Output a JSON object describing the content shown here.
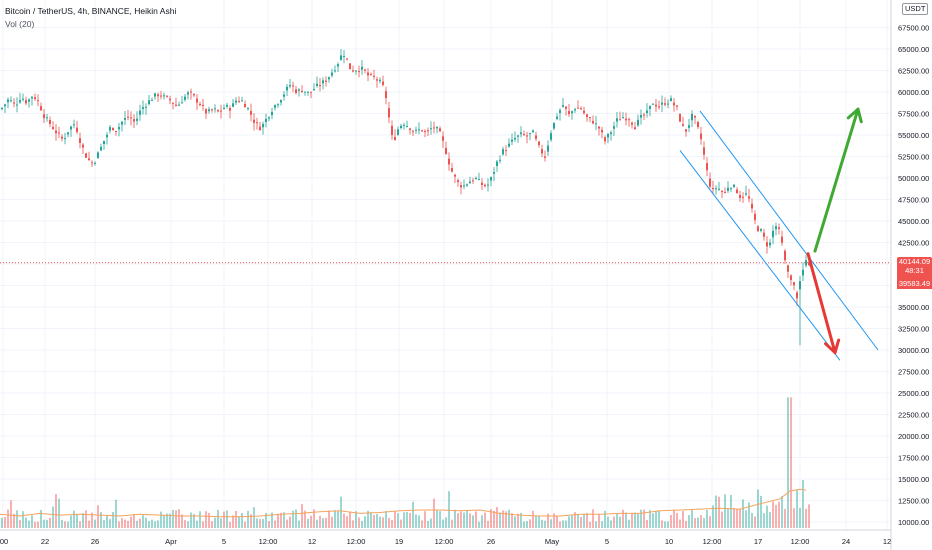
{
  "header": {
    "title": "Bitcoin / TetherUS, 4h, BINANCE, Heikin Ashi",
    "volume_label": "Vol (20)",
    "currency": "USDT"
  },
  "price_tags": {
    "last_price": "40144.09",
    "countdown": "48:31",
    "low_price": "39583.49"
  },
  "colors": {
    "up": "#26a69a",
    "down": "#ef5350",
    "channel": "#2196f3",
    "arrow_up": "#3fa933",
    "arrow_down": "#e53935",
    "volume_ma": "#f7a35c"
  },
  "chart_data": {
    "type": "candlestick",
    "y_axis_ticks": [
      "67500.00",
      "65000.00",
      "62500.00",
      "60000.00",
      "57500.00",
      "55000.00",
      "52500.00",
      "50000.00",
      "47500.00",
      "45000.00",
      "42500.00",
      "40000.00",
      "37500.00",
      "35000.00",
      "32500.00",
      "30000.00",
      "27500.00",
      "25000.00",
      "22500.00",
      "20000.00",
      "17500.00",
      "15000.00",
      "12500.00",
      "10000.00"
    ],
    "x_axis_ticks": [
      ":00",
      "22",
      "26",
      "Apr",
      "5",
      "12:00",
      "12",
      "12:00",
      "19",
      "12:00",
      "26",
      "May",
      "5",
      "10",
      "12:00",
      "17",
      "12:00",
      "24",
      "12"
    ],
    "price_path": [
      [
        0,
        58000
      ],
      [
        8,
        59200
      ],
      [
        14,
        58400
      ],
      [
        20,
        59500
      ],
      [
        26,
        58800
      ],
      [
        32,
        59700
      ],
      [
        38,
        58700
      ],
      [
        44,
        57000
      ],
      [
        50,
        56200
      ],
      [
        56,
        55200
      ],
      [
        62,
        54400
      ],
      [
        68,
        55700
      ],
      [
        74,
        56400
      ],
      [
        80,
        54000
      ],
      [
        86,
        52300
      ],
      [
        92,
        51600
      ],
      [
        98,
        53000
      ],
      [
        104,
        54600
      ],
      [
        110,
        56000
      ],
      [
        116,
        55600
      ],
      [
        122,
        56700
      ],
      [
        128,
        57200
      ],
      [
        134,
        56400
      ],
      [
        140,
        58000
      ],
      [
        146,
        58700
      ],
      [
        152,
        59400
      ],
      [
        158,
        59800
      ],
      [
        164,
        59300
      ],
      [
        170,
        59000
      ],
      [
        176,
        58300
      ],
      [
        182,
        59200
      ],
      [
        188,
        59900
      ],
      [
        194,
        59300
      ],
      [
        200,
        58500
      ],
      [
        206,
        57500
      ],
      [
        212,
        58000
      ],
      [
        218,
        57600
      ],
      [
        224,
        58300
      ],
      [
        230,
        58100
      ],
      [
        236,
        59200
      ],
      [
        242,
        58900
      ],
      [
        248,
        57900
      ],
      [
        254,
        56400
      ],
      [
        260,
        55800
      ],
      [
        266,
        57000
      ],
      [
        272,
        58200
      ],
      [
        278,
        59000
      ],
      [
        284,
        60000
      ],
      [
        290,
        61000
      ],
      [
        296,
        60000
      ],
      [
        302,
        60300
      ],
      [
        308,
        59800
      ],
      [
        314,
        60500
      ],
      [
        320,
        60900
      ],
      [
        326,
        61500
      ],
      [
        332,
        62500
      ],
      [
        338,
        63600
      ],
      [
        342,
        64700
      ],
      [
        346,
        63700
      ],
      [
        350,
        62500
      ],
      [
        356,
        62700
      ],
      [
        362,
        62600
      ],
      [
        368,
        61800
      ],
      [
        374,
        61600
      ],
      [
        380,
        61000
      ],
      [
        384,
        60200
      ],
      [
        388,
        57000
      ],
      [
        392,
        54000
      ],
      [
        396,
        55500
      ],
      [
        402,
        56500
      ],
      [
        408,
        56000
      ],
      [
        414,
        55300
      ],
      [
        420,
        55700
      ],
      [
        426,
        55200
      ],
      [
        432,
        56000
      ],
      [
        438,
        55400
      ],
      [
        444,
        53500
      ],
      [
        450,
        51000
      ],
      [
        456,
        49500
      ],
      [
        462,
        49000
      ],
      [
        468,
        49600
      ],
      [
        474,
        50000
      ],
      [
        480,
        49300
      ],
      [
        486,
        49000
      ],
      [
        490,
        49900
      ],
      [
        496,
        51800
      ],
      [
        502,
        53100
      ],
      [
        508,
        53800
      ],
      [
        514,
        54600
      ],
      [
        520,
        55000
      ],
      [
        526,
        54900
      ],
      [
        532,
        55200
      ],
      [
        538,
        53500
      ],
      [
        544,
        52500
      ],
      [
        550,
        55400
      ],
      [
        556,
        57300
      ],
      [
        562,
        58500
      ],
      [
        568,
        57300
      ],
      [
        574,
        58200
      ],
      [
        580,
        58100
      ],
      [
        586,
        57000
      ],
      [
        592,
        56600
      ],
      [
        598,
        55800
      ],
      [
        604,
        54300
      ],
      [
        610,
        55400
      ],
      [
        616,
        56700
      ],
      [
        622,
        57100
      ],
      [
        628,
        57000
      ],
      [
        634,
        56000
      ],
      [
        640,
        57000
      ],
      [
        646,
        57500
      ],
      [
        652,
        58800
      ],
      [
        658,
        58300
      ],
      [
        664,
        58800
      ],
      [
        670,
        59000
      ],
      [
        676,
        58000
      ],
      [
        680,
        56400
      ],
      [
        684,
        55300
      ],
      [
        688,
        56300
      ],
      [
        692,
        57400
      ],
      [
        696,
        56000
      ],
      [
        700,
        54500
      ],
      [
        704,
        52000
      ],
      [
        708,
        49500
      ],
      [
        712,
        48500
      ],
      [
        716,
        49000
      ],
      [
        720,
        48500
      ],
      [
        724,
        48200
      ],
      [
        728,
        49300
      ],
      [
        732,
        49000
      ],
      [
        736,
        48500
      ],
      [
        740,
        47700
      ],
      [
        744,
        48300
      ],
      [
        748,
        47500
      ],
      [
        752,
        45700
      ],
      [
        756,
        44200
      ],
      [
        760,
        43800
      ],
      [
        764,
        42700
      ],
      [
        768,
        41900
      ],
      [
        772,
        43800
      ],
      [
        776,
        44600
      ],
      [
        780,
        42900
      ],
      [
        784,
        40400
      ],
      [
        788,
        38400
      ],
      [
        792,
        37700
      ],
      [
        796,
        36200
      ],
      [
        800,
        38500
      ],
      [
        804,
        40100
      ],
      [
        808,
        40144
      ]
    ],
    "volume_path": [
      [
        0,
        10900
      ],
      [
        20,
        10700
      ],
      [
        40,
        11000
      ],
      [
        60,
        10800
      ],
      [
        80,
        10900
      ],
      [
        100,
        10800
      ],
      [
        120,
        10700
      ],
      [
        140,
        10900
      ],
      [
        160,
        10800
      ],
      [
        180,
        10700
      ],
      [
        200,
        10700
      ],
      [
        220,
        10600
      ],
      [
        240,
        10600
      ],
      [
        260,
        10700
      ],
      [
        280,
        10900
      ],
      [
        300,
        11000
      ],
      [
        320,
        11200
      ],
      [
        340,
        11300
      ],
      [
        360,
        11000
      ],
      [
        380,
        11100
      ],
      [
        400,
        11300
      ],
      [
        420,
        11400
      ],
      [
        440,
        11400
      ],
      [
        460,
        11300
      ],
      [
        480,
        11400
      ],
      [
        500,
        11000
      ],
      [
        520,
        10800
      ],
      [
        540,
        10700
      ],
      [
        560,
        10700
      ],
      [
        580,
        10900
      ],
      [
        600,
        10900
      ],
      [
        620,
        11000
      ],
      [
        640,
        11000
      ],
      [
        660,
        11300
      ],
      [
        680,
        11400
      ],
      [
        700,
        11500
      ],
      [
        720,
        11600
      ],
      [
        740,
        11500
      ],
      [
        760,
        12100
      ],
      [
        780,
        12700
      ],
      [
        790,
        13600
      ],
      [
        800,
        13800
      ],
      [
        806,
        13700
      ]
    ],
    "channel": {
      "upper": [
        [
          700,
          57800
        ],
        [
          878,
          30000
        ]
      ],
      "lower": [
        [
          680,
          53200
        ],
        [
          840,
          28800
        ]
      ]
    },
    "projections": {
      "bullish_arrow": [
        [
          815,
          41500
        ],
        [
          858,
          58000
        ]
      ],
      "bearish_arrow": [
        [
          808,
          41200
        ],
        [
          835,
          29700
        ]
      ]
    },
    "current_price": 40144.09,
    "ylim": [
      9500,
      69500
    ]
  }
}
